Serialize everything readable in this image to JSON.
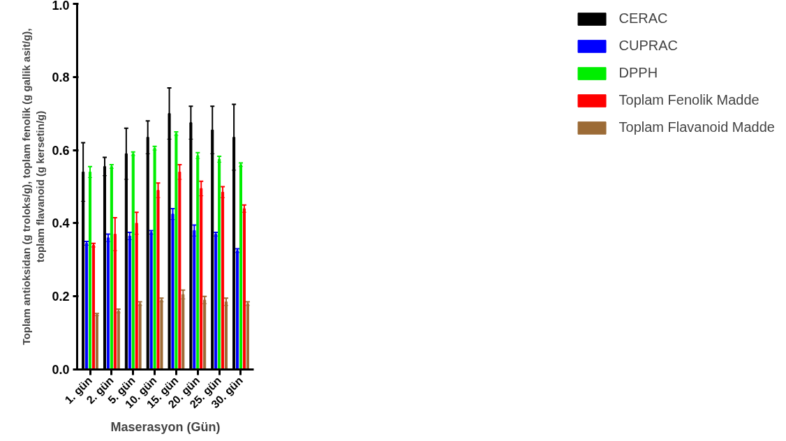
{
  "chart_data": {
    "type": "bar",
    "xlabel": "Maserasyon (Gün)",
    "ylabel": "Toplam antioksidan (g troloks/g), toplam fenolik (g gallik asit/g),\ntoplam flavanoid (g kersetin/g)",
    "categories": [
      "1. gün",
      "2. gün",
      "5. gün",
      "10. gün",
      "15. gün",
      "20. gün",
      "25. gün",
      "30. gün"
    ],
    "series": [
      {
        "name": "CERAC",
        "color": "#000000",
        "values": [
          0.54,
          0.555,
          0.59,
          0.635,
          0.7,
          0.675,
          0.655,
          0.635
        ],
        "errors": [
          0.08,
          0.025,
          0.07,
          0.045,
          0.07,
          0.045,
          0.065,
          0.09
        ]
      },
      {
        "name": "CUPRAC",
        "color": "#0000ff",
        "values": [
          0.345,
          0.36,
          0.365,
          0.375,
          0.425,
          0.38,
          0.37,
          0.325
        ],
        "errors": [
          0.005,
          0.01,
          0.01,
          0.005,
          0.015,
          0.015,
          0.005,
          0.005
        ]
      },
      {
        "name": "DPPH",
        "color": "#00ee00",
        "values": [
          0.54,
          0.555,
          0.59,
          0.605,
          0.645,
          0.585,
          0.575,
          0.56
        ],
        "errors": [
          0.015,
          0.005,
          0.005,
          0.005,
          0.005,
          0.008,
          0.008,
          0.005
        ]
      },
      {
        "name": "Toplam Fenolik Madde",
        "color": "#ff0000",
        "values": [
          0.34,
          0.37,
          0.4,
          0.49,
          0.54,
          0.495,
          0.485,
          0.44
        ],
        "errors": [
          0.005,
          0.045,
          0.03,
          0.02,
          0.02,
          0.02,
          0.015,
          0.01
        ]
      },
      {
        "name": "Toplam Flavanoid Madde",
        "color": "#9c6b36",
        "values": [
          0.15,
          0.16,
          0.18,
          0.19,
          0.205,
          0.19,
          0.185,
          0.18
        ],
        "errors": [
          0.003,
          0.005,
          0.005,
          0.005,
          0.012,
          0.01,
          0.01,
          0.005
        ]
      }
    ],
    "ylim": [
      0,
      1
    ],
    "yticks": [
      {
        "value": 0,
        "label": "0.0"
      },
      0.2,
      0.4,
      0.6,
      0.8,
      {
        "value": 1,
        "label": "1.0"
      }
    ],
    "grid": false,
    "legend": "right"
  }
}
